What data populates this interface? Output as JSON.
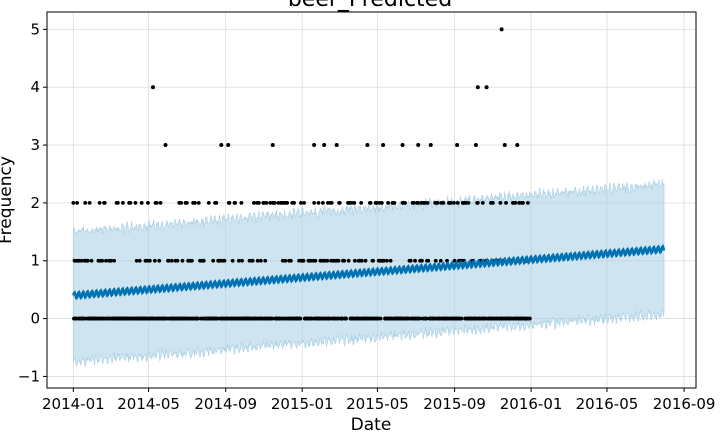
{
  "chart_data": {
    "type": "scatter",
    "title": "beer_Predicted",
    "xlabel": "Date",
    "ylabel": "Frequency",
    "x_range": [
      "2013-11-20",
      "2016-09-20"
    ],
    "ylim": [
      -1.2,
      5.3
    ],
    "x_ticks": [
      "2014-01",
      "2014-05",
      "2014-09",
      "2015-01",
      "2015-05",
      "2015-09",
      "2016-01",
      "2016-05",
      "2016-09"
    ],
    "y_ticks": [
      -1,
      0,
      1,
      2,
      3,
      4,
      5
    ],
    "grid": true,
    "colors": {
      "band": "#a6cee3",
      "forecast": "#0072b2",
      "observed": "#000000"
    },
    "forecast": {
      "start": "2014-01-01",
      "end": "2016-07-31",
      "yhat_start": 0.4,
      "yhat_end": 1.2,
      "lower_start": -0.75,
      "lower_end": 0.08,
      "upper_start": 1.5,
      "upper_end": 2.32
    },
    "observed_range": [
      "2014-01-01",
      "2015-12-31"
    ],
    "observed_counts": [
      0,
      1,
      2,
      3
    ],
    "observed_outliers": [
      {
        "x": "2014-05-08",
        "y": 4
      },
      {
        "x": "2015-10-08",
        "y": 4
      },
      {
        "x": "2015-10-22",
        "y": 4
      },
      {
        "x": "2015-11-15",
        "y": 5
      },
      {
        "x": "2014-05-28",
        "y": 3
      },
      {
        "x": "2014-08-25",
        "y": 3
      },
      {
        "x": "2014-09-05",
        "y": 3
      },
      {
        "x": "2014-11-15",
        "y": 3
      },
      {
        "x": "2015-01-20",
        "y": 3
      },
      {
        "x": "2015-02-05",
        "y": 3
      },
      {
        "x": "2015-02-25",
        "y": 3
      },
      {
        "x": "2015-04-15",
        "y": 3
      },
      {
        "x": "2015-05-10",
        "y": 3
      },
      {
        "x": "2015-06-10",
        "y": 3
      },
      {
        "x": "2015-07-05",
        "y": 3
      },
      {
        "x": "2015-07-25",
        "y": 3
      },
      {
        "x": "2015-09-05",
        "y": 3
      },
      {
        "x": "2015-10-05",
        "y": 3
      },
      {
        "x": "2015-11-20",
        "y": 3
      },
      {
        "x": "2015-12-10",
        "y": 3
      }
    ]
  }
}
